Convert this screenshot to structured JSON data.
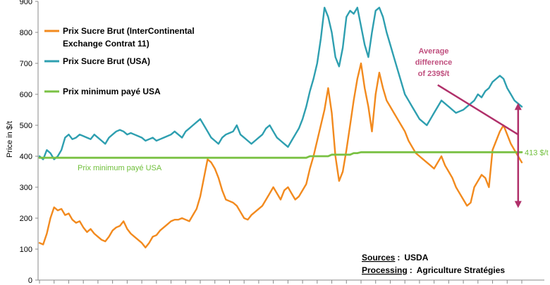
{
  "chart_data": {
    "type": "line",
    "title": "",
    "ylabel": "Price in $/t",
    "xlabel": "",
    "ylim": [
      0,
      900
    ],
    "yticks": [
      0,
      100,
      200,
      300,
      400,
      500,
      600,
      700,
      800,
      900
    ],
    "x_count": 133,
    "series": [
      {
        "name": "Prix Sucre Brut (InterContinental Exchange Contrat 11)",
        "legend_lines": [
          "Prix Sucre Brut (InterContinental",
          "Exchange Contrat 11)"
        ],
        "color": "#f28a1e",
        "values": [
          120,
          115,
          150,
          200,
          235,
          225,
          230,
          210,
          215,
          195,
          185,
          190,
          170,
          155,
          165,
          150,
          140,
          130,
          125,
          140,
          160,
          170,
          175,
          190,
          165,
          150,
          140,
          130,
          120,
          105,
          120,
          140,
          145,
          160,
          170,
          180,
          190,
          195,
          195,
          200,
          195,
          190,
          210,
          230,
          270,
          330,
          390,
          380,
          360,
          330,
          290,
          260,
          255,
          250,
          240,
          220,
          200,
          195,
          210,
          220,
          230,
          240,
          260,
          280,
          300,
          280,
          260,
          290,
          300,
          280,
          260,
          270,
          290,
          310,
          360,
          400,
          450,
          500,
          550,
          620,
          540,
          400,
          320,
          350,
          420,
          500,
          580,
          650,
          700,
          620,
          560,
          480,
          600,
          670,
          620,
          580,
          560,
          540,
          520,
          500,
          480,
          450,
          430,
          410,
          400,
          390,
          380,
          370,
          360,
          380,
          400,
          370,
          350,
          330,
          300,
          280,
          260,
          240,
          250,
          300,
          320,
          340,
          330,
          300,
          420,
          450,
          480,
          500,
          470,
          440,
          420,
          400,
          380
        ]
      },
      {
        "name": "Prix Sucre Brut (USA)",
        "legend_lines": [
          "Prix Sucre Brut (USA)"
        ],
        "color": "#2e9fb0",
        "values": [
          400,
          390,
          420,
          410,
          390,
          400,
          420,
          460,
          470,
          455,
          460,
          470,
          465,
          460,
          455,
          470,
          460,
          450,
          440,
          460,
          470,
          480,
          485,
          480,
          470,
          475,
          470,
          465,
          460,
          450,
          455,
          460,
          450,
          455,
          460,
          465,
          470,
          480,
          470,
          460,
          480,
          490,
          500,
          510,
          520,
          500,
          480,
          460,
          450,
          440,
          460,
          470,
          475,
          480,
          500,
          470,
          460,
          450,
          440,
          450,
          460,
          470,
          490,
          500,
          480,
          460,
          450,
          440,
          430,
          450,
          470,
          490,
          520,
          560,
          610,
          650,
          700,
          780,
          880,
          850,
          800,
          720,
          690,
          750,
          850,
          870,
          860,
          880,
          820,
          760,
          720,
          800,
          870,
          880,
          850,
          800,
          760,
          720,
          680,
          640,
          600,
          580,
          560,
          540,
          520,
          510,
          500,
          520,
          540,
          560,
          580,
          570,
          560,
          550,
          540,
          545,
          550,
          560,
          570,
          580,
          600,
          590,
          610,
          620,
          640,
          650,
          660,
          650,
          620,
          600,
          580,
          570,
          560
        ]
      },
      {
        "name": "Prix minimum payé USA",
        "legend_lines": [
          "Prix minimum payé USA"
        ],
        "color": "#7ac143",
        "values": [
          395,
          395,
          395,
          395,
          395,
          395,
          395,
          395,
          395,
          395,
          395,
          395,
          395,
          395,
          395,
          395,
          395,
          395,
          395,
          395,
          395,
          395,
          395,
          395,
          395,
          395,
          395,
          395,
          395,
          395,
          395,
          395,
          395,
          395,
          395,
          395,
          395,
          395,
          395,
          395,
          395,
          395,
          395,
          395,
          395,
          395,
          395,
          395,
          395,
          395,
          395,
          395,
          395,
          395,
          395,
          395,
          395,
          395,
          395,
          395,
          395,
          395,
          395,
          395,
          395,
          395,
          395,
          395,
          395,
          395,
          395,
          395,
          395,
          395,
          400,
          400,
          400,
          400,
          400,
          400,
          405,
          405,
          405,
          405,
          405,
          405,
          410,
          410,
          413,
          413,
          413,
          413,
          413,
          413,
          413,
          413,
          413,
          413,
          413,
          413,
          413,
          413,
          413,
          413,
          413,
          413,
          413,
          413,
          413,
          413,
          413,
          413,
          413,
          413,
          413,
          413,
          413,
          413,
          413,
          413,
          413,
          413,
          413,
          413,
          413,
          413,
          413,
          413,
          413,
          413,
          413,
          413,
          413
        ]
      }
    ],
    "annotations": {
      "inline_min_label": "Prix minimum payé USA",
      "right_value_label": "413 $/t",
      "avg_diff_lines": [
        "Average",
        "difference",
        "of 239$/t"
      ],
      "avg_diff_start_index": 109,
      "avg_diff_start_value": 630,
      "avg_diff_end_index": 131,
      "avg_diff_end_value": 470,
      "vertical_arrow_index": 131,
      "vertical_arrow_top": 570,
      "vertical_arrow_bottom": 235
    },
    "sources": {
      "sources_label": "Sources",
      "sources_value": "USDA",
      "processing_label": "Processing",
      "processing_value": "Agriculture Stratégies"
    },
    "annotation_color": "#b0306a"
  }
}
